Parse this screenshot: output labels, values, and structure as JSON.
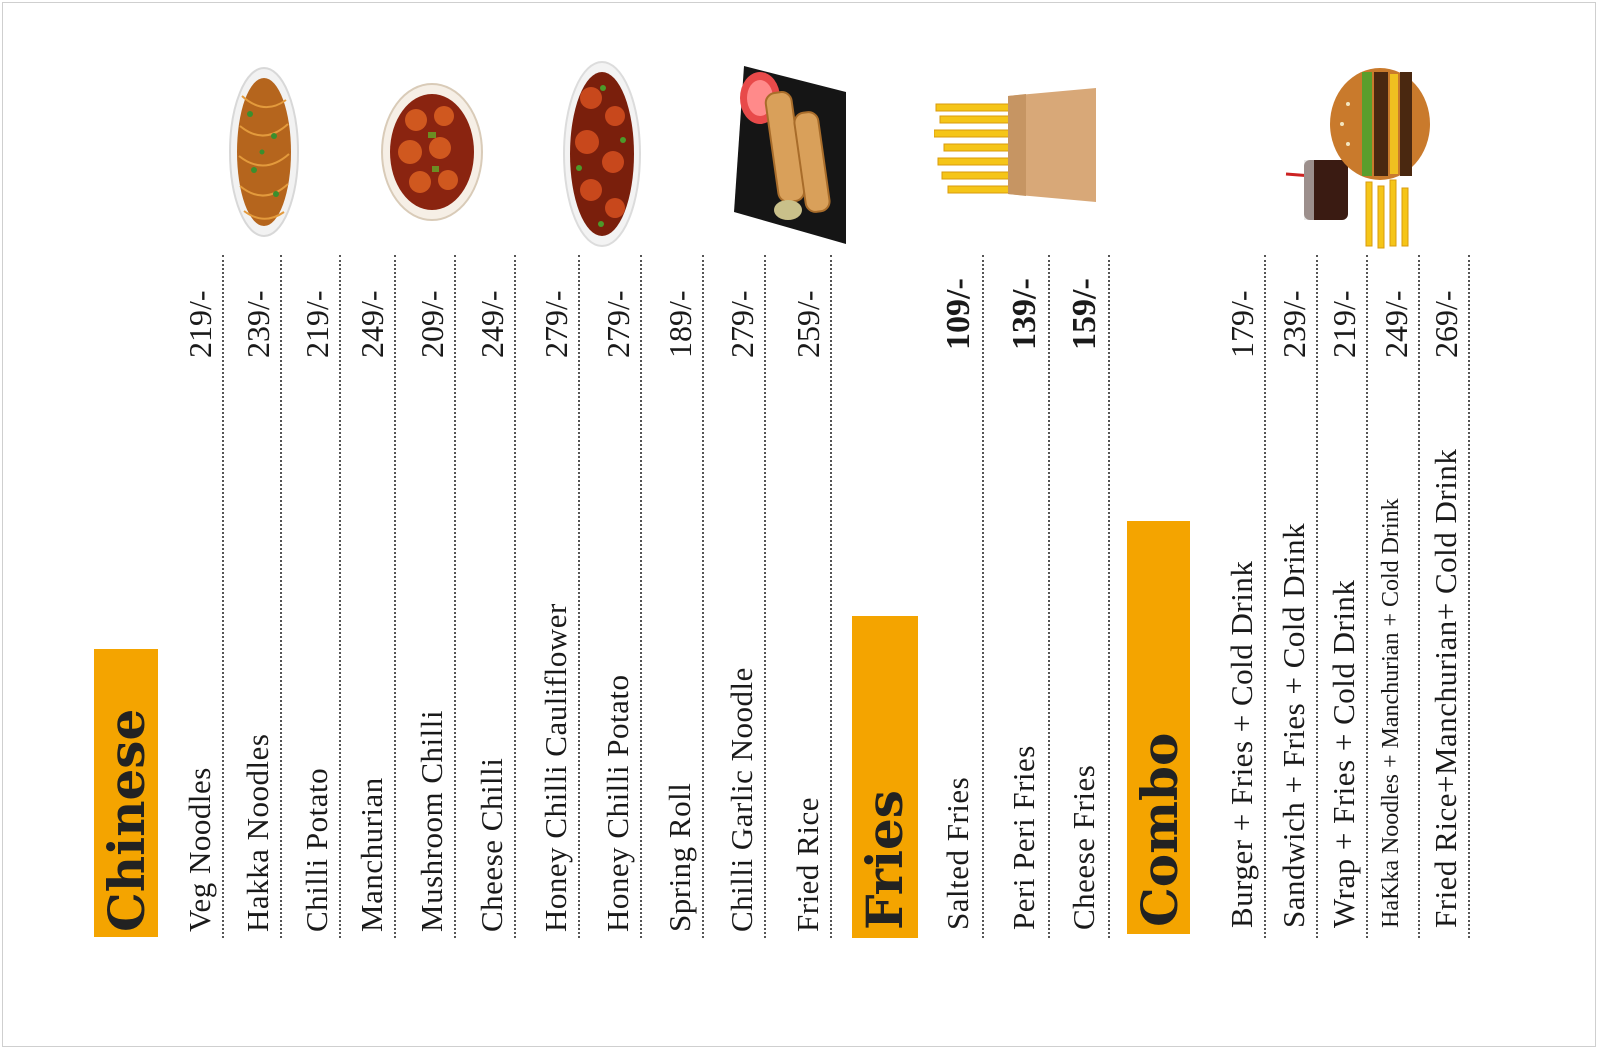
{
  "sections": {
    "chinese": {
      "title": "Chinese",
      "items": [
        {
          "name": "Veg Noodles",
          "price": "219/-"
        },
        {
          "name": "Hakka Noodles",
          "price": "239/-"
        },
        {
          "name": "Chilli Potato",
          "price": "219/-"
        },
        {
          "name": "Manchurian",
          "price": "249/-"
        },
        {
          "name": "Mushroom Chilli",
          "price": "209/-"
        },
        {
          "name": "Cheese Chilli",
          "price": "249/-"
        },
        {
          "name": "Honey Chilli Cauliflower",
          "price": "279/-"
        },
        {
          "name": "Honey Chilli Potato",
          "price": "279/-"
        },
        {
          "name": "Spring Roll",
          "price": "189/-"
        },
        {
          "name": "Chilli Garlic Noodle",
          "price": "279/-"
        },
        {
          "name": "Fried Rice",
          "price": "259/-"
        }
      ]
    },
    "fries": {
      "title": "Fries",
      "items": [
        {
          "name": "Salted Fries",
          "price": "109/-"
        },
        {
          "name": "Peri Peri Fries",
          "price": "139/-"
        },
        {
          "name": "Cheese Fries",
          "price": "159/-"
        }
      ]
    },
    "combo": {
      "title": "Combo",
      "items": [
        {
          "name": "Burger + Fries + Cold Drink",
          "price": "179/-"
        },
        {
          "name": "Sandwich + Fries + Cold Drink",
          "price": "239/-"
        },
        {
          "name": "Wrap + Fries + Cold Drink",
          "price": "219/-"
        },
        {
          "name": "HaKka Noodles + Manchurian + Cold Drink",
          "price": "249/-"
        },
        {
          "name": "Fried Rice+Manchurian+ Cold Drink",
          "price": "269/-"
        }
      ]
    }
  },
  "images": {
    "noodles": "noodles-plate-icon",
    "manchurian": "manchurian-bowl-icon",
    "chilli": "chilli-bowl-icon",
    "spring_roll": "spring-roll-plate-icon",
    "fries": "fries-cup-icon",
    "combo": "burger-combo-icon"
  },
  "colors": {
    "accent": "#f4a400",
    "text": "#1a1a1a"
  }
}
